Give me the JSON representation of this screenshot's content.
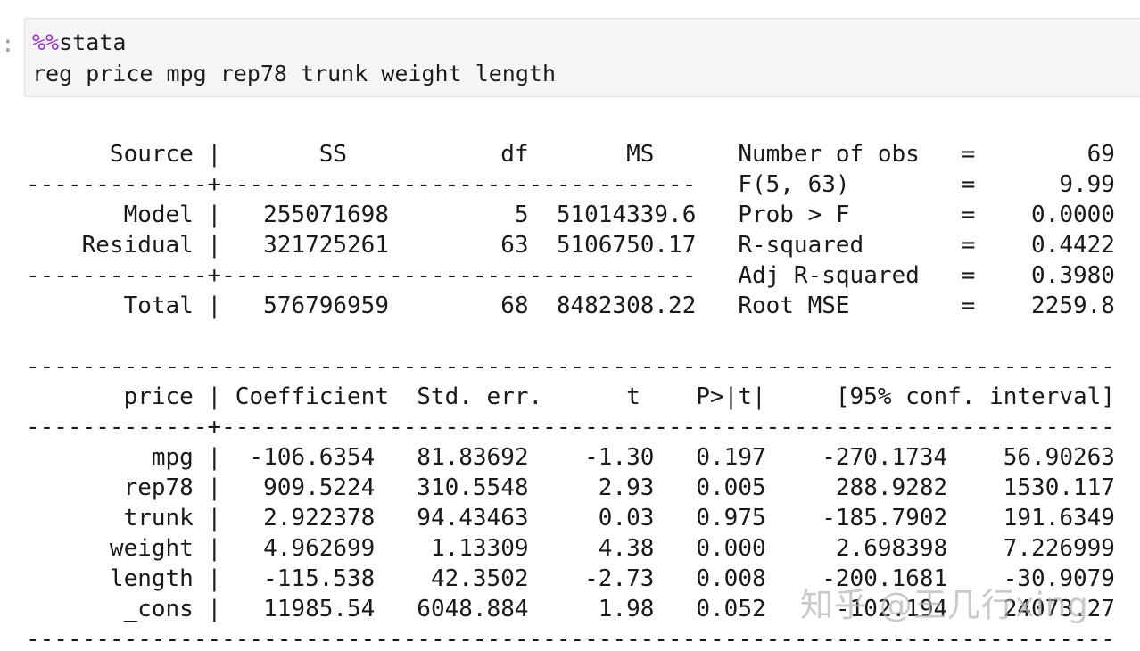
{
  "notebook": {
    "prompt_colon": ":"
  },
  "code_cell": {
    "magic_prefix": "%%",
    "magic_name": "stata",
    "command": "reg price mpg rep78 trunk weight length"
  },
  "colors": {
    "magic_token": "#a42ae0",
    "cell_background": "#f5f5f5",
    "cell_border": "#e1e1e1",
    "output_text": "#1a1a1a",
    "watermark_gray": "#b6b6b6"
  },
  "output": {
    "lines": [
      "      Source |       SS           df       MS      Number of obs   =        69",
      "-------------+----------------------------------   F(5, 63)        =      9.99",
      "       Model |   255071698         5  51014339.6   Prob > F        =    0.0000",
      "    Residual |   321725261        63  5106750.17   R-squared       =    0.4422",
      "-------------+----------------------------------   Adj R-squared   =    0.3980",
      "       Total |   576796959        68  8482308.22   Root MSE        =    2259.8",
      "",
      "------------------------------------------------------------------------------",
      "       price | Coefficient  Std. err.      t    P>|t|     [95% conf. interval]",
      "-------------+----------------------------------------------------------------",
      "         mpg |  -106.6354   81.83692    -1.30   0.197    -270.1734    56.90263",
      "       rep78 |   909.5224   310.5548     2.93   0.005     288.9282    1530.117",
      "       trunk |   2.922378   94.43463     0.03   0.975    -185.7902    191.6349",
      "      weight |   4.962699    1.13309     4.38   0.000     2.698398    7.226999",
      "      length |   -115.538    42.3502    -2.73   0.008    -200.1681    -30.9079",
      "       _cons |   11985.54   6048.884     1.98   0.052     -102.194    24073.27",
      "------------------------------------------------------------------------------"
    ]
  },
  "regression": {
    "dependent_variable": "price",
    "summary_stats": [
      {
        "label": "Number of obs",
        "value": "69"
      },
      {
        "label": "F(5, 63)",
        "value": "9.99"
      },
      {
        "label": "Prob > F",
        "value": "0.0000"
      },
      {
        "label": "R-squared",
        "value": "0.4422"
      },
      {
        "label": "Adj R-squared",
        "value": "0.3980"
      },
      {
        "label": "Root MSE",
        "value": "2259.8"
      }
    ],
    "anova": {
      "columns": [
        "Source",
        "SS",
        "df",
        "MS"
      ],
      "rows": [
        {
          "source": "Model",
          "ss": "255071698",
          "df": "5",
          "ms": "51014339.6"
        },
        {
          "source": "Residual",
          "ss": "321725261",
          "df": "63",
          "ms": "5106750.17"
        },
        {
          "source": "Total",
          "ss": "576796959",
          "df": "68",
          "ms": "8482308.22"
        }
      ]
    },
    "coefficients": {
      "columns": [
        "price",
        "Coefficient",
        "Std. err.",
        "t",
        "P>|t|",
        "[95% conf. interval]"
      ],
      "rows": [
        {
          "var": "mpg",
          "coef": "-106.6354",
          "std_err": "81.83692",
          "t": "-1.30",
          "p": "0.197",
          "ci_low": "-270.1734",
          "ci_high": "56.90263"
        },
        {
          "var": "rep78",
          "coef": "909.5224",
          "std_err": "310.5548",
          "t": "2.93",
          "p": "0.005",
          "ci_low": "288.9282",
          "ci_high": "1530.117"
        },
        {
          "var": "trunk",
          "coef": "2.922378",
          "std_err": "94.43463",
          "t": "0.03",
          "p": "0.975",
          "ci_low": "-185.7902",
          "ci_high": "191.6349"
        },
        {
          "var": "weight",
          "coef": "4.962699",
          "std_err": "1.13309",
          "t": "4.38",
          "p": "0.000",
          "ci_low": "2.698398",
          "ci_high": "7.226999"
        },
        {
          "var": "length",
          "coef": "-115.538",
          "std_err": "42.3502",
          "t": "-2.73",
          "p": "0.008",
          "ci_low": "-200.1681",
          "ci_high": "-30.9079"
        },
        {
          "var": "_cons",
          "coef": "11985.54",
          "std_err": "6048.884",
          "t": "1.98",
          "p": "0.052",
          "ci_low": "-102.194",
          "ci_high": "24073.27"
        }
      ]
    }
  },
  "watermark": {
    "text": "知乎 @王几行xing"
  }
}
